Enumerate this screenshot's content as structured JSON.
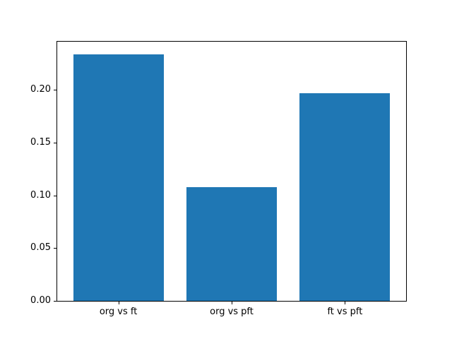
{
  "chart_data": {
    "type": "bar",
    "title": "",
    "xlabel": "",
    "ylabel": "",
    "categories": [
      "org vs ft",
      "org vs pft",
      "ft vs pft"
    ],
    "values": [
      0.234,
      0.108,
      0.197
    ],
    "yticks": [
      0.0,
      0.05,
      0.1,
      0.15,
      0.2
    ],
    "ytick_labels": [
      "0.00",
      "0.05",
      "0.10",
      "0.15",
      "0.20"
    ],
    "ylim": [
      0,
      0.2457
    ],
    "xlim": [
      -0.54,
      2.54
    ],
    "bar_width_fraction": 0.8,
    "bar_color": "#1f77b4",
    "grid": false,
    "legend": null,
    "background_color": "#ffffff",
    "spine_color": "#000000"
  }
}
